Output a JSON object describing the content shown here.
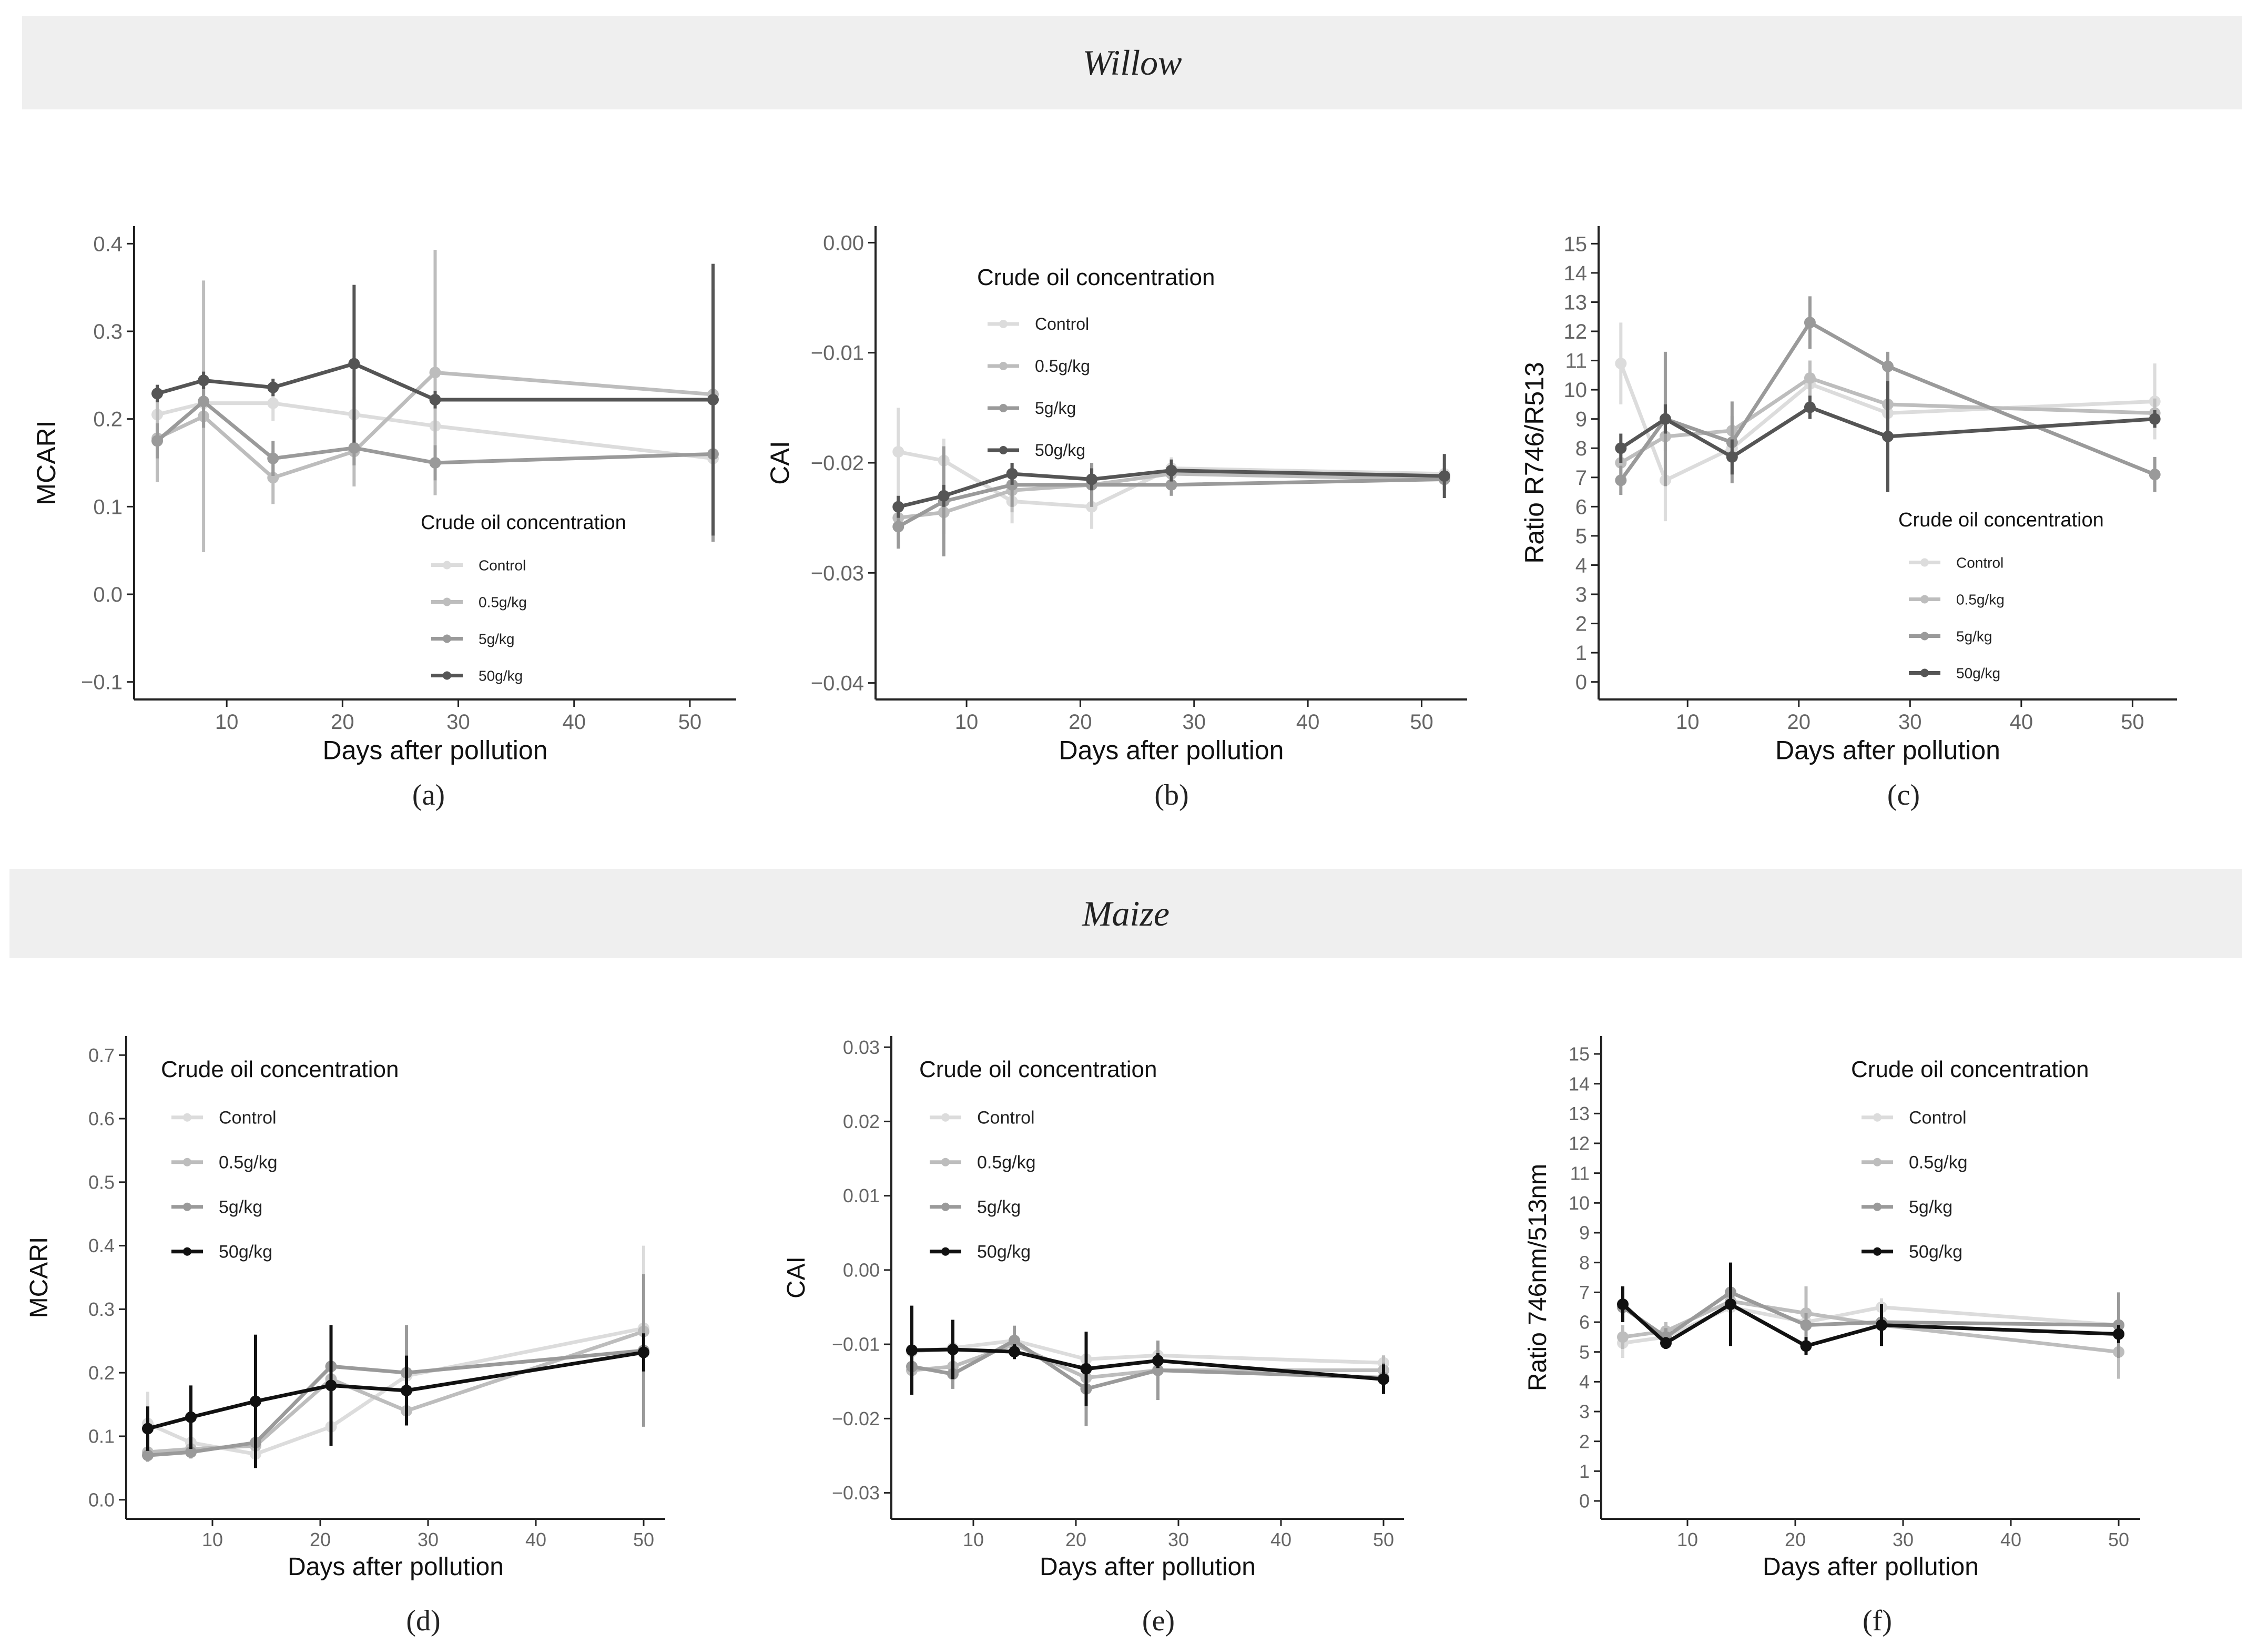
{
  "sections": {
    "willow": "Willow",
    "maize": "Maize"
  },
  "panel_labels": [
    "(a)",
    "(b)",
    "(c)",
    "(d)",
    "(e)",
    "(f)"
  ],
  "legend": {
    "title": "Crude oil concentration",
    "entries": [
      "Control",
      "0.5g/kg",
      "5g/kg",
      "50g/kg"
    ]
  },
  "colors": {
    "Control": "#dcdcdc",
    "0.5g/kg": "#bdbdbd",
    "5g/kg": "#9a9a9a",
    "50g/kg_willow": "#555555",
    "50g/kg_maize": "#111111",
    "axis": "#222222",
    "tick_label": "#666666"
  },
  "chart_data": [
    {
      "id": "a",
      "type": "line",
      "plant": "Willow",
      "title": "",
      "xlabel": "Days after pollution",
      "ylabel": "MCARI",
      "xlim": [
        2,
        54
      ],
      "ylim": [
        -0.12,
        0.42
      ],
      "xticks": [
        10,
        20,
        30,
        40,
        50
      ],
      "yticks": [
        -0.1,
        0.0,
        0.1,
        0.2,
        0.3,
        0.4
      ],
      "ytick_labels": [
        "−0.1",
        "0.0",
        "0.1",
        "0.2",
        "0.3",
        "0.4"
      ],
      "legend_position": "bottom-right",
      "x": [
        4,
        8,
        14,
        21,
        28,
        52
      ],
      "series": [
        {
          "name": "Control",
          "values": [
            0.205,
            0.218,
            0.218,
            0.205,
            0.192,
            0.155
          ],
          "err": [
            0.02,
            0.02,
            0.02,
            0.02,
            0.02,
            0.02
          ]
        },
        {
          "name": "0.5g/kg",
          "values": [
            0.178,
            0.203,
            0.133,
            0.163,
            0.253,
            0.228
          ],
          "err": [
            0.05,
            0.155,
            0.03,
            0.04,
            0.14,
            0.12
          ]
        },
        {
          "name": "5g/kg",
          "values": [
            0.175,
            0.22,
            0.155,
            0.167,
            0.15,
            0.16
          ],
          "err": [
            0.02,
            0.03,
            0.02,
            0.02,
            0.02,
            0.1
          ]
        },
        {
          "name": "50g/kg",
          "values": [
            0.229,
            0.244,
            0.236,
            0.263,
            0.222,
            0.222
          ],
          "err": [
            0.01,
            0.01,
            0.01,
            0.09,
            0.01,
            0.155
          ]
        }
      ]
    },
    {
      "id": "b",
      "type": "line",
      "plant": "Willow",
      "title": "",
      "xlabel": "Days after pollution",
      "ylabel": "CAI",
      "xlim": [
        2,
        54
      ],
      "ylim": [
        -0.0415,
        0.0015
      ],
      "xticks": [
        10,
        20,
        30,
        40,
        50
      ],
      "yticks": [
        -0.04,
        -0.03,
        -0.02,
        -0.01,
        0.0
      ],
      "ytick_labels": [
        "−0.04",
        "−0.03",
        "−0.02",
        "−0.01",
        "0.00"
      ],
      "legend_position": "top-left",
      "x": [
        4,
        8,
        14,
        21,
        28,
        52
      ],
      "series": [
        {
          "name": "Control",
          "values": [
            -0.019,
            -0.0198,
            -0.0235,
            -0.024,
            -0.0205,
            -0.021
          ],
          "err": [
            0.004,
            0.002,
            0.002,
            0.002,
            0.001,
            0.001
          ]
        },
        {
          "name": "0.5g/kg",
          "values": [
            -0.025,
            -0.0245,
            -0.0225,
            -0.022,
            -0.021,
            -0.0215
          ],
          "err": [
            0.002,
            0.002,
            0.002,
            0.002,
            0.001,
            0.001
          ]
        },
        {
          "name": "5g/kg",
          "values": [
            -0.0258,
            -0.0235,
            -0.022,
            -0.022,
            -0.022,
            -0.0215
          ],
          "err": [
            0.002,
            0.005,
            0.002,
            0.002,
            0.001,
            0.001
          ]
        },
        {
          "name": "50g/kg",
          "values": [
            -0.024,
            -0.023,
            -0.021,
            -0.0215,
            -0.0207,
            -0.0212
          ],
          "err": [
            0.001,
            0.001,
            0.001,
            0.001,
            0.001,
            0.002
          ]
        }
      ]
    },
    {
      "id": "c",
      "type": "line",
      "plant": "Willow",
      "title": "",
      "xlabel": "Days after pollution",
      "ylabel": "Ratio  R746/R513",
      "xlim": [
        2,
        54
      ],
      "ylim": [
        -0.6,
        15.6
      ],
      "xticks": [
        10,
        20,
        30,
        40,
        50
      ],
      "yticks": [
        0,
        1,
        2,
        3,
        4,
        5,
        6,
        7,
        8,
        9,
        10,
        11,
        12,
        13,
        14,
        15
      ],
      "ytick_labels": [
        "0",
        "1",
        "2",
        "3",
        "4",
        "5",
        "6",
        "7",
        "8",
        "9",
        "10",
        "11",
        "12",
        "13",
        "14",
        "15"
      ],
      "legend_position": "bottom-right",
      "x": [
        4,
        8,
        14,
        21,
        28,
        52
      ],
      "series": [
        {
          "name": "Control",
          "values": [
            10.9,
            6.9,
            8.0,
            10.2,
            9.2,
            9.6
          ],
          "err": [
            1.4,
            1.4,
            0.6,
            0.5,
            0.5,
            1.3
          ]
        },
        {
          "name": "0.5g/kg",
          "values": [
            7.5,
            8.4,
            8.6,
            10.4,
            9.5,
            9.2
          ],
          "err": [
            0.5,
            0.5,
            0.5,
            0.6,
            0.5,
            0.5
          ]
        },
        {
          "name": "5g/kg",
          "values": [
            6.9,
            9.0,
            8.2,
            12.3,
            10.8,
            7.1
          ],
          "err": [
            0.5,
            2.3,
            1.4,
            0.9,
            0.5,
            0.6
          ]
        },
        {
          "name": "50g/kg",
          "values": [
            8.0,
            9.0,
            7.7,
            9.4,
            8.4,
            9.0
          ],
          "err": [
            0.5,
            0.5,
            0.6,
            0.4,
            1.9,
            0.3
          ]
        }
      ]
    },
    {
      "id": "d",
      "type": "line",
      "plant": "Maize",
      "title": "",
      "xlabel": "Days after pollution",
      "ylabel": "MCARI",
      "xlim": [
        2,
        52
      ],
      "ylim": [
        -0.03,
        0.73
      ],
      "xticks": [
        10,
        20,
        30,
        40,
        50
      ],
      "yticks": [
        0.0,
        0.1,
        0.2,
        0.3,
        0.4,
        0.5,
        0.6,
        0.7
      ],
      "ytick_labels": [
        "0.0",
        "0.1",
        "0.2",
        "0.3",
        "0.4",
        "0.5",
        "0.6",
        "0.7"
      ],
      "legend_position": "top-left",
      "x": [
        4,
        8,
        14,
        21,
        28,
        50
      ],
      "series": [
        {
          "name": "Control",
          "values": [
            0.12,
            0.09,
            0.072,
            0.115,
            0.195,
            0.27
          ],
          "err": [
            0.05,
            0.01,
            0.02,
            0.01,
            0.02,
            0.13
          ]
        },
        {
          "name": "0.5g/kg",
          "values": [
            0.075,
            0.08,
            0.085,
            0.19,
            0.14,
            0.265
          ],
          "err": [
            0.01,
            0.01,
            0.01,
            0.06,
            0.02,
            0.09
          ]
        },
        {
          "name": "5g/kg",
          "values": [
            0.07,
            0.075,
            0.09,
            0.21,
            0.2,
            0.235
          ],
          "err": [
            0.01,
            0.01,
            0.02,
            0.02,
            0.075,
            0.12
          ]
        },
        {
          "name": "50g/kg",
          "values": [
            0.112,
            0.13,
            0.155,
            0.18,
            0.172,
            0.232
          ],
          "err": [
            0.035,
            0.05,
            0.105,
            0.095,
            0.055,
            0.03
          ]
        }
      ]
    },
    {
      "id": "e",
      "type": "line",
      "plant": "Maize",
      "title": "",
      "xlabel": "Days after pollution",
      "ylabel": "CAI",
      "xlim": [
        2,
        52
      ],
      "ylim": [
        -0.0335,
        0.0315
      ],
      "xticks": [
        10,
        20,
        30,
        40,
        50
      ],
      "yticks": [
        -0.03,
        -0.02,
        -0.01,
        0.0,
        0.01,
        0.02,
        0.03
      ],
      "ytick_labels": [
        "−0.03",
        "−0.02",
        "−0.01",
        "0.00",
        "0.01",
        "0.02",
        "0.03"
      ],
      "legend_position": "top-left",
      "x": [
        4,
        8,
        14,
        21,
        28,
        50
      ],
      "series": [
        {
          "name": "Control",
          "values": [
            -0.011,
            -0.0105,
            -0.0095,
            -0.012,
            -0.0115,
            -0.0125
          ],
          "err": [
            0.002,
            0.002,
            0.002,
            0.002,
            0.001,
            0.001
          ]
        },
        {
          "name": "0.5g/kg",
          "values": [
            -0.0135,
            -0.013,
            -0.01,
            -0.0145,
            -0.0135,
            -0.0135
          ],
          "err": [
            0.002,
            0.002,
            0.002,
            0.002,
            0.002,
            0.002
          ]
        },
        {
          "name": "5g/kg",
          "values": [
            -0.013,
            -0.014,
            -0.0095,
            -0.016,
            -0.0135,
            -0.0145
          ],
          "err": [
            0.002,
            0.002,
            0.002,
            0.005,
            0.004,
            0.002
          ]
        },
        {
          "name": "50g/kg",
          "values": [
            -0.0108,
            -0.0107,
            -0.011,
            -0.0133,
            -0.0122,
            -0.0147
          ],
          "err": [
            0.006,
            0.004,
            0.001,
            0.005,
            0.001,
            0.002
          ]
        }
      ]
    },
    {
      "id": "f",
      "type": "line",
      "plant": "Maize",
      "title": "",
      "xlabel": "Days after pollution",
      "ylabel": "Ratio 746nm/513nm",
      "xlim": [
        2,
        52
      ],
      "ylim": [
        -0.6,
        15.6
      ],
      "xticks": [
        10,
        20,
        30,
        40,
        50
      ],
      "yticks": [
        0,
        1,
        2,
        3,
        4,
        5,
        6,
        7,
        8,
        9,
        10,
        11,
        12,
        13,
        14,
        15
      ],
      "ytick_labels": [
        "0",
        "1",
        "2",
        "3",
        "4",
        "5",
        "6",
        "7",
        "8",
        "9",
        "10",
        "11",
        "12",
        "13",
        "14",
        "15"
      ],
      "legend_position": "top-right",
      "x": [
        4,
        8,
        14,
        21,
        28,
        50
      ],
      "series": [
        {
          "name": "Control",
          "values": [
            5.3,
            5.5,
            6.5,
            6.0,
            6.5,
            5.9
          ],
          "err": [
            0.5,
            0.3,
            0.4,
            0.4,
            0.3,
            0.3
          ]
        },
        {
          "name": "0.5g/kg",
          "values": [
            5.5,
            5.7,
            6.7,
            6.3,
            5.9,
            5.0
          ],
          "err": [
            0.4,
            0.3,
            0.4,
            0.9,
            0.3,
            0.9
          ]
        },
        {
          "name": "5g/kg",
          "values": [
            6.5,
            5.5,
            7.0,
            5.9,
            6.0,
            5.9
          ],
          "err": [
            0.4,
            0.3,
            0.4,
            0.4,
            0.3,
            1.1
          ]
        },
        {
          "name": "50g/kg",
          "values": [
            6.6,
            5.3,
            6.6,
            5.2,
            5.9,
            5.6
          ],
          "err": [
            0.6,
            0.2,
            1.4,
            0.3,
            0.7,
            0.3
          ]
        }
      ]
    }
  ]
}
